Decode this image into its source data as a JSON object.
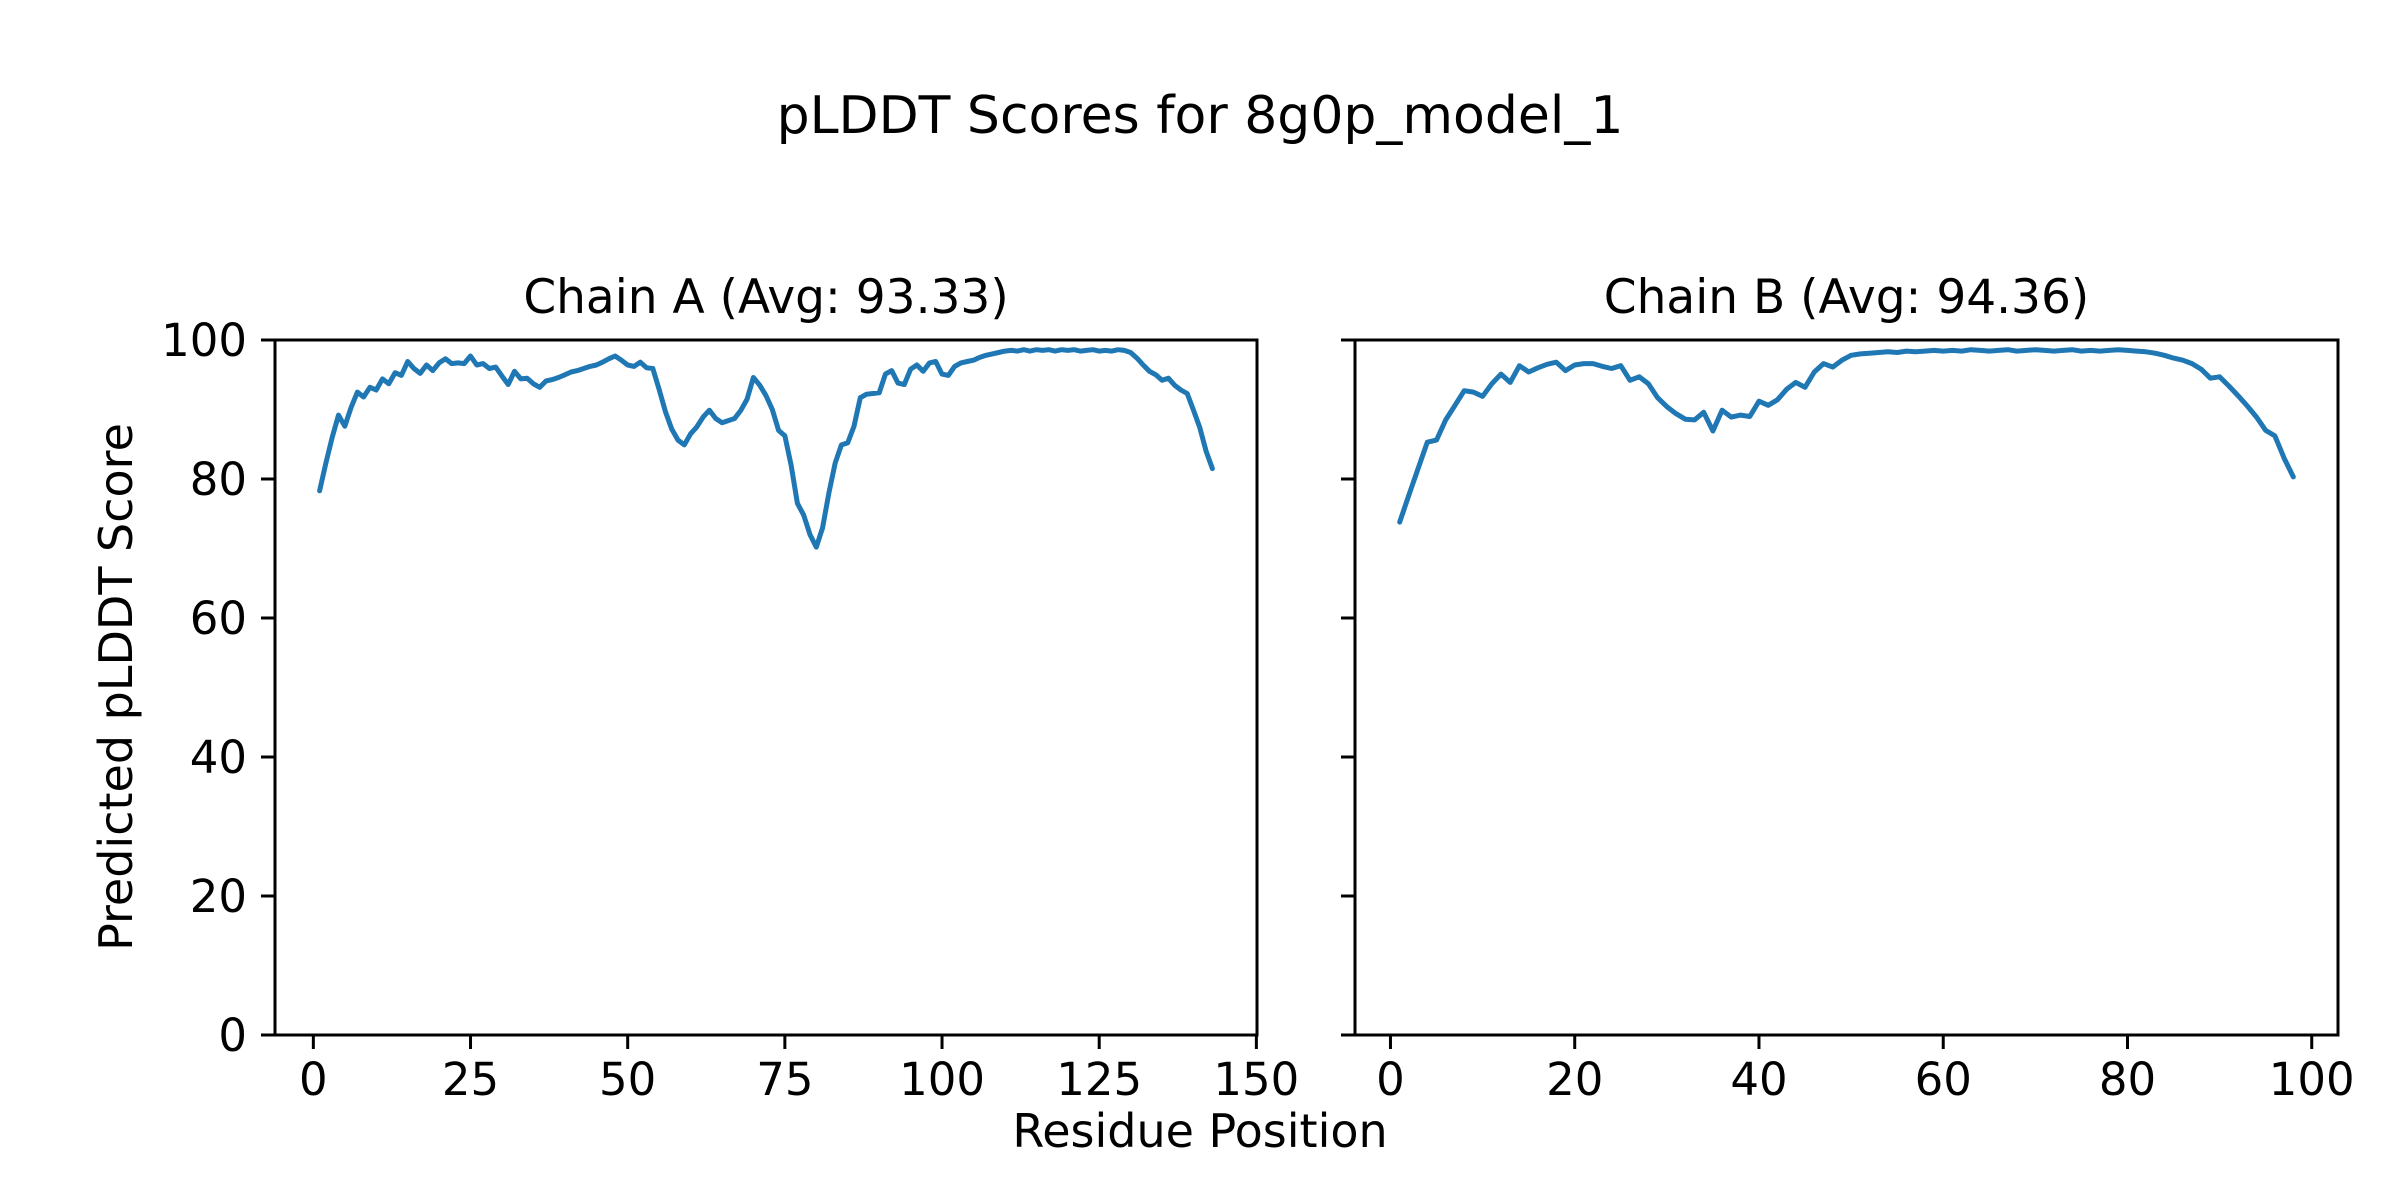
{
  "figure": {
    "title": "pLDDT Scores for 8g0p_model_1",
    "xlabel": "Residue Position",
    "ylabel": "Predicted pLDDT Score",
    "background": "#ffffff",
    "text_color": "#000000",
    "spine_color": "#000000"
  },
  "chart_data": [
    {
      "type": "line",
      "title": "Chain A (Avg: 93.33)",
      "chain": "A",
      "avg": 93.33,
      "line_color": "#1f77b4",
      "x_start": 1,
      "x_end": 143,
      "values": [
        78.3,
        82.3,
        86.0,
        89.2,
        87.6,
        90.3,
        92.5,
        91.8,
        93.2,
        92.8,
        94.4,
        93.7,
        95.3,
        94.9,
        96.9,
        95.9,
        95.2,
        96.4,
        95.6,
        96.7,
        97.3,
        96.6,
        96.7,
        96.6,
        97.7,
        96.4,
        96.6,
        95.9,
        96.1,
        94.8,
        93.6,
        95.5,
        94.4,
        94.5,
        93.7,
        93.2,
        94.1,
        94.3,
        94.6,
        95.0,
        95.4,
        95.6,
        95.9,
        96.2,
        96.4,
        96.8,
        97.3,
        97.7,
        97.1,
        96.4,
        96.2,
        96.8,
        96.0,
        95.9,
        92.9,
        89.7,
        87.2,
        85.6,
        84.9,
        86.5,
        87.5,
        88.9,
        89.9,
        88.7,
        88.1,
        88.4,
        88.7,
        89.9,
        91.5,
        94.6,
        93.5,
        92.0,
        90.0,
        87.0,
        86.2,
        82.0,
        76.5,
        74.8,
        72.0,
        70.2,
        73.0,
        78.0,
        82.3,
        84.9,
        85.2,
        87.6,
        91.7,
        92.2,
        92.3,
        92.4,
        95.1,
        95.6,
        93.8,
        93.6,
        95.8,
        96.4,
        95.5,
        96.7,
        96.9,
        95.1,
        94.9,
        96.2,
        96.7,
        96.9,
        97.1,
        97.5,
        97.8,
        98.0,
        98.2,
        98.4,
        98.5,
        98.4,
        98.6,
        98.4,
        98.6,
        98.5,
        98.6,
        98.4,
        98.6,
        98.5,
        98.6,
        98.4,
        98.5,
        98.6,
        98.4,
        98.5,
        98.4,
        98.6,
        98.5,
        98.2,
        97.4,
        96.4,
        95.5,
        95.0,
        94.2,
        94.5,
        93.5,
        92.8,
        92.3,
        89.9,
        87.4,
        84.0,
        81.5
      ],
      "xlim": [
        -6.1,
        150.1
      ],
      "ylim": [
        0,
        100
      ],
      "x_ticks": [
        0,
        25,
        50,
        75,
        100,
        125,
        150
      ],
      "y_ticks": [
        0,
        20,
        40,
        60,
        80,
        100
      ],
      "show_y_tick_labels": true,
      "grid": false,
      "legend": "none"
    },
    {
      "type": "line",
      "title": "Chain B (Avg: 94.36)",
      "chain": "B",
      "avg": 94.36,
      "line_color": "#1f77b4",
      "x_start": 1,
      "x_end": 98,
      "values": [
        73.8,
        77.7,
        81.5,
        85.3,
        85.6,
        88.5,
        90.6,
        92.7,
        92.5,
        91.9,
        93.7,
        95.1,
        93.9,
        96.3,
        95.4,
        96.0,
        96.5,
        96.8,
        95.6,
        96.4,
        96.6,
        96.6,
        96.2,
        95.9,
        96.3,
        94.2,
        94.7,
        93.7,
        91.7,
        90.4,
        89.4,
        88.6,
        88.5,
        89.6,
        86.9,
        89.9,
        88.9,
        89.2,
        89.0,
        91.2,
        90.6,
        91.4,
        92.9,
        93.9,
        93.2,
        95.4,
        96.6,
        96.1,
        97.1,
        97.8,
        98.0,
        98.1,
        98.2,
        98.3,
        98.2,
        98.4,
        98.3,
        98.4,
        98.5,
        98.4,
        98.5,
        98.4,
        98.6,
        98.5,
        98.4,
        98.5,
        98.6,
        98.4,
        98.5,
        98.6,
        98.5,
        98.4,
        98.5,
        98.6,
        98.4,
        98.5,
        98.4,
        98.5,
        98.6,
        98.5,
        98.4,
        98.3,
        98.1,
        97.8,
        97.4,
        97.1,
        96.6,
        95.8,
        94.5,
        94.7,
        93.4,
        92.0,
        90.5,
        88.9,
        87.0,
        86.2,
        83.0,
        80.3
      ],
      "xlim": [
        -3.85,
        102.85
      ],
      "ylim": [
        0,
        100
      ],
      "x_ticks": [
        0,
        20,
        40,
        60,
        80,
        100
      ],
      "y_ticks": [
        0,
        20,
        40,
        60,
        80,
        100
      ],
      "show_y_tick_labels": false,
      "grid": false,
      "legend": "none"
    }
  ]
}
